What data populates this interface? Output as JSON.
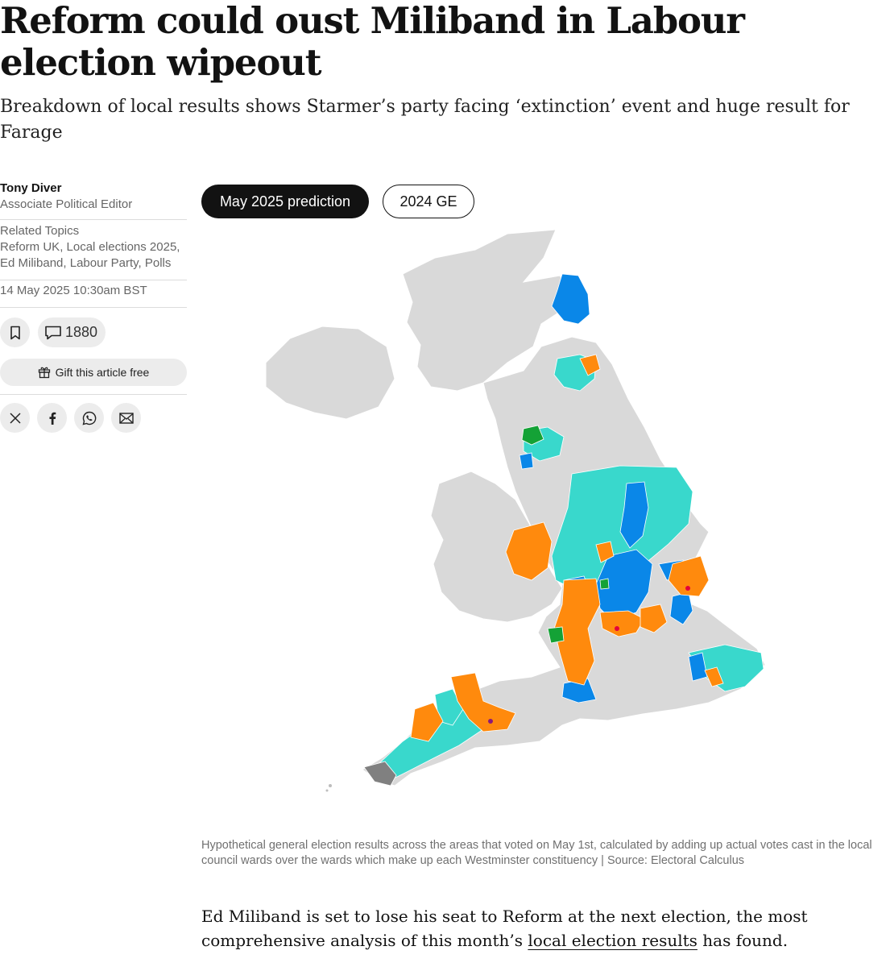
{
  "article": {
    "headline": "Reform could oust Miliband in Labour election wipeout",
    "standfirst": "Breakdown of local results shows Starmer’s party facing ‘extinction’ event and huge result for Farage",
    "body_before_link": "Ed Miliband is set to lose his seat to Reform at the next election, the most comprehensive analysis of this month’s ",
    "body_link": "local election results",
    "body_after_link": " has found."
  },
  "sidebar": {
    "author_name": "Tony Diver",
    "author_role": "Associate Political Editor",
    "topics_heading": "Related Topics",
    "topics": [
      "Reform UK",
      "Local elections 2025",
      "Ed Miliband",
      "Labour Party",
      "Polls"
    ],
    "date": "14 May 2025 10:30am BST",
    "comment_count": "1880",
    "gift_label": "Gift this article free",
    "icons": {
      "bookmark": "bookmark-icon",
      "comment": "comment-icon",
      "gift": "gift-icon",
      "share": [
        "x-icon",
        "facebook-icon",
        "whatsapp-icon",
        "email-icon"
      ]
    }
  },
  "map_toggle": {
    "active_label": "May 2025 prediction",
    "inactive_label": "2024 GE"
  },
  "map": {
    "colors": {
      "land": "#d9d9d9",
      "reform": "#39d8cc",
      "conservative": "#0a87e8",
      "labour_hold": "#ff8a0d",
      "green": "#14a236",
      "independent": "#808080",
      "labour": "#e4003b"
    }
  },
  "caption": "Hypothetical general election results across the areas that voted on May 1st, calculated by adding up actual votes cast in the local council wards over the wards which make up each Westminster constituency | Source: Electoral Calculus"
}
